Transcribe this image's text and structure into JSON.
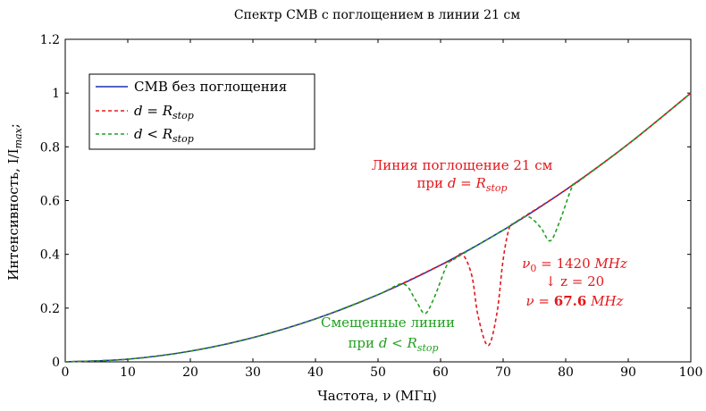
{
  "chart_data": {
    "type": "line",
    "title": "Спектр СМВ с поглощением в линии 21 см",
    "xlabel": "Частота, ν (МГц)",
    "ylabel": "Интенсивность, I/I_max;",
    "xlim": [
      0,
      100
    ],
    "ylim": [
      0,
      1.2
    ],
    "xticks": [
      0,
      10,
      20,
      30,
      40,
      50,
      60,
      70,
      80,
      90,
      100
    ],
    "yticks": [
      0,
      0.2,
      0.4,
      0.6,
      0.8,
      1,
      1.2
    ],
    "grid": false,
    "legend_position": "top-left",
    "series": [
      {
        "name": "СМВ без поглощения",
        "color": "#1f2fb0",
        "style": "solid",
        "x": [
          0,
          10,
          20,
          30,
          40,
          50,
          60,
          70,
          80,
          90,
          100
        ],
        "y": [
          0,
          0.01,
          0.04,
          0.09,
          0.16,
          0.25,
          0.36,
          0.49,
          0.64,
          0.81,
          1.0
        ]
      },
      {
        "name": "d = R_stop",
        "color": "#e3181b",
        "style": "dashed",
        "x": [
          0,
          10,
          20,
          30,
          40,
          50,
          60,
          62,
          63.5,
          65,
          66,
          67.6,
          69,
          70,
          71,
          72,
          80,
          90,
          100
        ],
        "y": [
          0,
          0.01,
          0.04,
          0.09,
          0.16,
          0.25,
          0.36,
          0.38,
          0.4,
          0.32,
          0.17,
          0.06,
          0.18,
          0.38,
          0.5,
          0.52,
          0.64,
          0.81,
          1.0
        ]
      },
      {
        "name": "d < R_stop",
        "color": "#22a022",
        "style": "dashed",
        "x": [
          0,
          10,
          20,
          30,
          40,
          50,
          54,
          56,
          57.5,
          59,
          61,
          62,
          70,
          72,
          74,
          76,
          77.5,
          79,
          81,
          82,
          90,
          100
        ],
        "y": [
          0,
          0.01,
          0.04,
          0.09,
          0.16,
          0.25,
          0.29,
          0.23,
          0.18,
          0.24,
          0.36,
          0.38,
          0.49,
          0.52,
          0.54,
          0.5,
          0.45,
          0.52,
          0.65,
          0.67,
          0.81,
          1.0
        ]
      }
    ],
    "annotations": {
      "red_line1": "Линия поглощение 21 см",
      "red_line2_prefix": "при ",
      "red_line2_math": "d = R",
      "red_line2_sub": "stop",
      "nu0_prefix": "ν",
      "nu0_sub": "0",
      "nu0_value": " = 1420 ",
      "nu0_unit": "MHz",
      "z_text": "↓ z = 20",
      "nu_prefix": "ν = ",
      "nu_value": "67.6",
      "nu_unit": " MHz",
      "green_line1": "Смещенные линии",
      "green_line2_prefix": "при ",
      "green_line2_math": "d < R",
      "green_line2_sub": "stop"
    },
    "legend": {
      "entry1": "СМВ без поглощения",
      "entry2_math": "d = R",
      "entry2_sub": "stop",
      "entry3_math": "d < R",
      "entry3_sub": "stop"
    },
    "ylabel_parts": {
      "main": "Интенсивность, I/I",
      "sub": "max",
      "end": ";"
    }
  }
}
